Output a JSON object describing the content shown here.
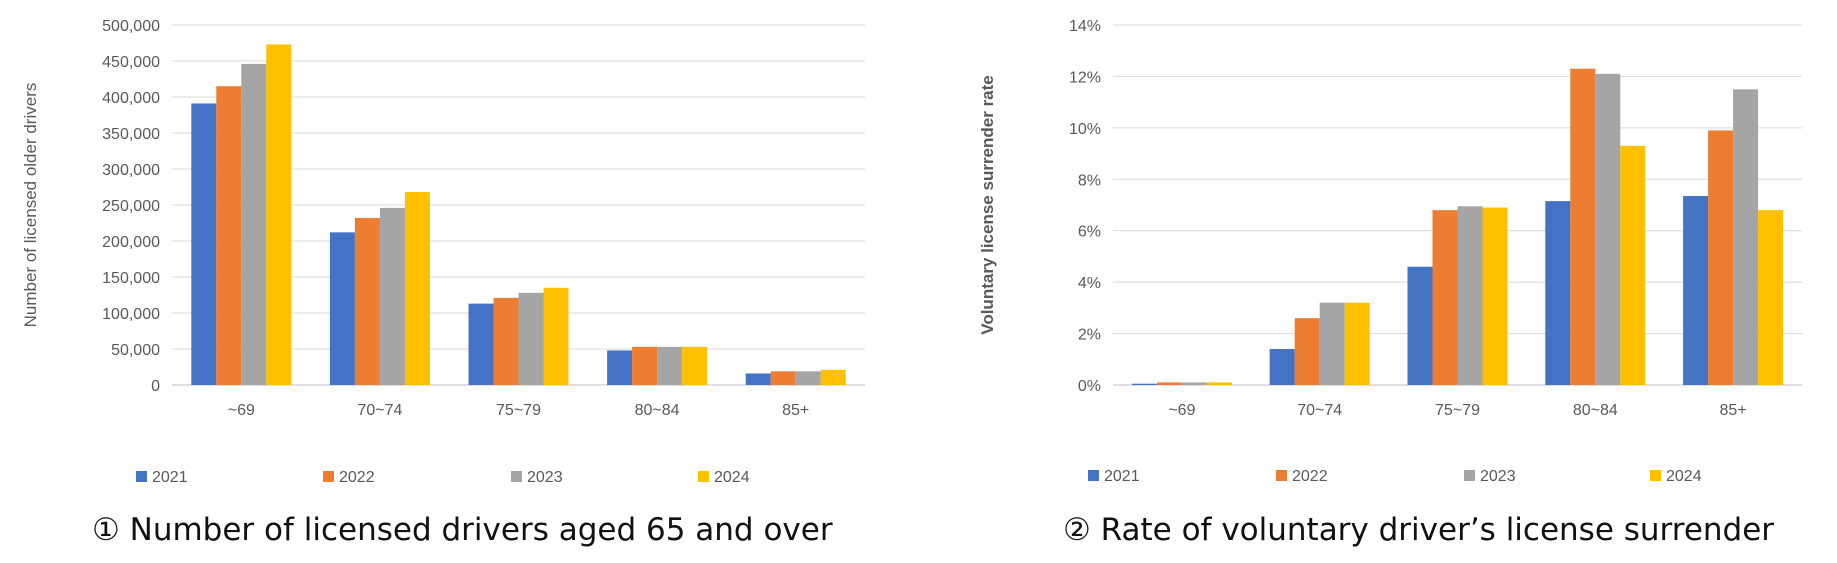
{
  "chart_data": [
    {
      "type": "bar",
      "title": "① Number of licensed drivers aged 65 and over",
      "xlabel": "",
      "ylabel": "Number of licensed older drivers",
      "categories": [
        "~69",
        "70~74",
        "75~79",
        "80~84",
        "85+"
      ],
      "ylim": [
        0,
        500000
      ],
      "yticks": [
        "0",
        "50,000",
        "100,000",
        "150,000",
        "200,000",
        "250,000",
        "300,000",
        "350,000",
        "400,000",
        "450,000",
        "500,000"
      ],
      "grid": true,
      "legend_position": "bottom",
      "series": [
        {
          "name": "2021",
          "color": "#4472C4",
          "values": [
            391000,
            212000,
            113000,
            48000,
            16000
          ]
        },
        {
          "name": "2022",
          "color": "#ED7D31",
          "values": [
            415000,
            232000,
            121000,
            53000,
            19000
          ]
        },
        {
          "name": "2023",
          "color": "#A5A5A5",
          "values": [
            446000,
            246000,
            128000,
            53000,
            19000
          ]
        },
        {
          "name": "2024",
          "color": "#FFC000",
          "values": [
            473000,
            268000,
            135000,
            53000,
            21000
          ]
        }
      ]
    },
    {
      "type": "bar",
      "title": "② Rate of voluntary driver’s license surrender",
      "xlabel": "",
      "ylabel": "Voluntary license surrender rate",
      "categories": [
        "~69",
        "70~74",
        "75~79",
        "80~84",
        "85+"
      ],
      "ylim": [
        0,
        14
      ],
      "yticks": [
        "0%",
        "2%",
        "4%",
        "6%",
        "8%",
        "10%",
        "12%",
        "14%"
      ],
      "grid": true,
      "legend_position": "bottom",
      "series": [
        {
          "name": "2021",
          "color": "#4472C4",
          "values": [
            0.05,
            1.4,
            4.6,
            7.15,
            7.35
          ]
        },
        {
          "name": "2022",
          "color": "#ED7D31",
          "values": [
            0.1,
            2.6,
            6.8,
            12.3,
            9.9
          ]
        },
        {
          "name": "2023",
          "color": "#A5A5A5",
          "values": [
            0.1,
            3.2,
            6.95,
            12.1,
            11.5
          ]
        },
        {
          "name": "2024",
          "color": "#FFC000",
          "values": [
            0.1,
            3.2,
            6.9,
            9.3,
            6.8
          ]
        }
      ]
    }
  ]
}
